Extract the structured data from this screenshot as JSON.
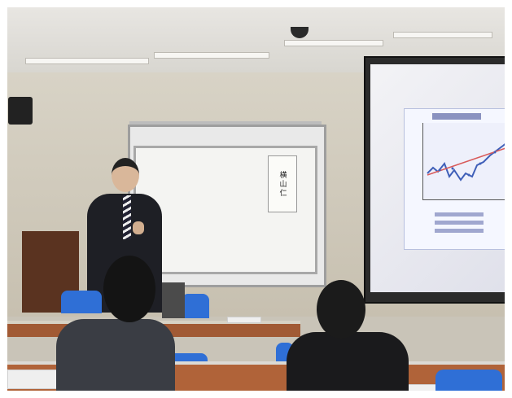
{
  "photo": {
    "whiteboard_sign_text": "横山仁"
  }
}
